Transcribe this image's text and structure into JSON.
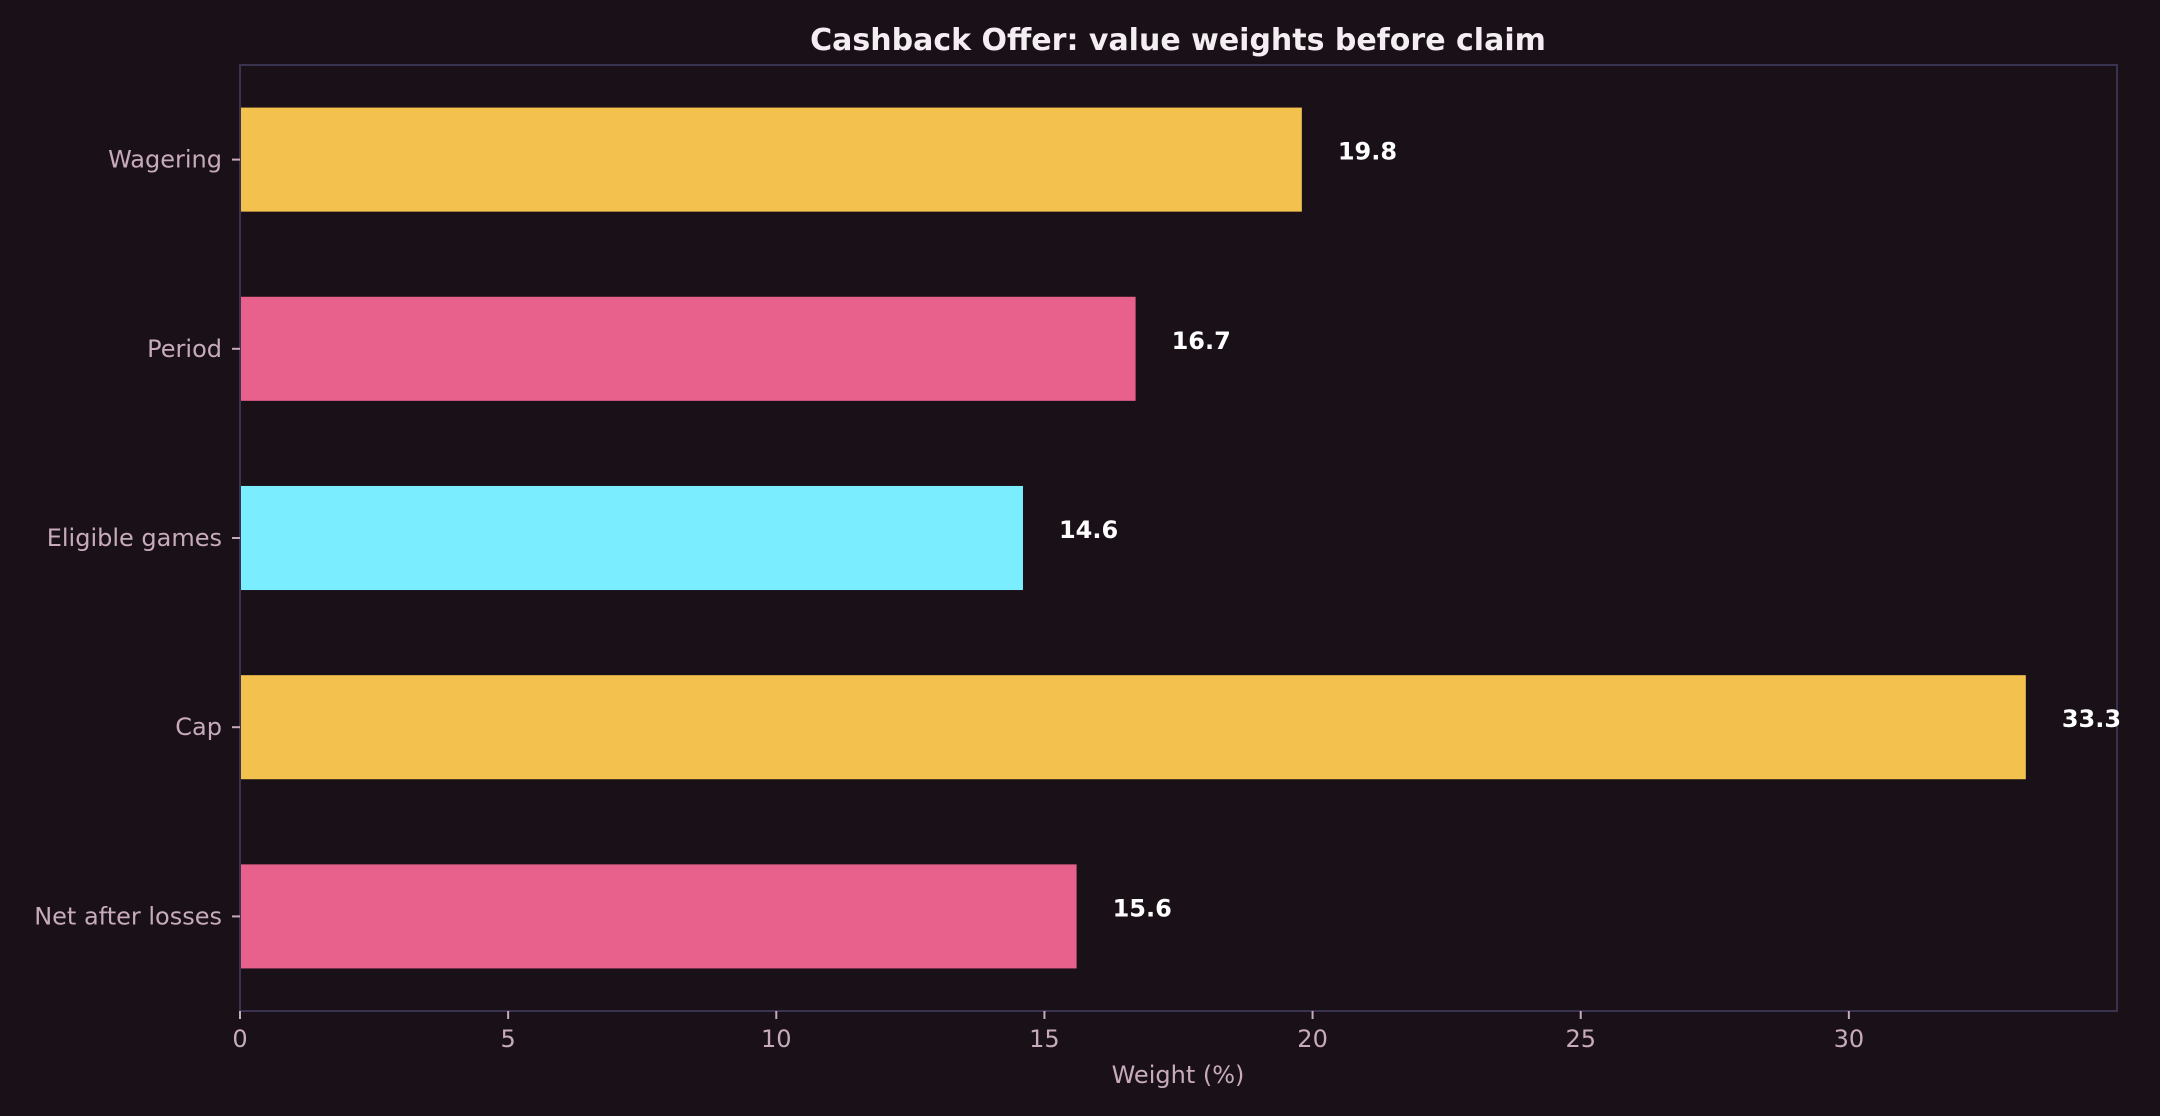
{
  "colors": {
    "background": "#1a1118",
    "frame": "#3a3350",
    "tick_text": "#c7aabb",
    "title_text": "#f4eef2",
    "data_label_text": "#ffffff",
    "gold": "#f2c14e",
    "pink": "#e8608c",
    "cyan": "#7aeeff"
  },
  "chart_data": {
    "type": "bar",
    "orientation": "horizontal",
    "title": "Cashback Offer: value weights before claim",
    "xlabel": "Weight (%)",
    "ylabel": "",
    "categories": [
      "Wagering",
      "Period",
      "Eligible games",
      "Cap",
      "Net after losses"
    ],
    "values": [
      19.8,
      16.7,
      14.6,
      33.3,
      15.6
    ],
    "value_labels": [
      "19.8",
      "16.7",
      "14.6",
      "33.3",
      "15.6"
    ],
    "bar_colors": [
      "#f2c14e",
      "#e8608c",
      "#7aeeff",
      "#f2c14e",
      "#e8608c"
    ],
    "xlim": [
      0,
      35
    ],
    "xticks": [
      0,
      5,
      10,
      15,
      20,
      25,
      30
    ],
    "xtick_labels": [
      "0",
      "5",
      "10",
      "15",
      "20",
      "25",
      "30"
    ],
    "grid": false,
    "legend": "none"
  }
}
